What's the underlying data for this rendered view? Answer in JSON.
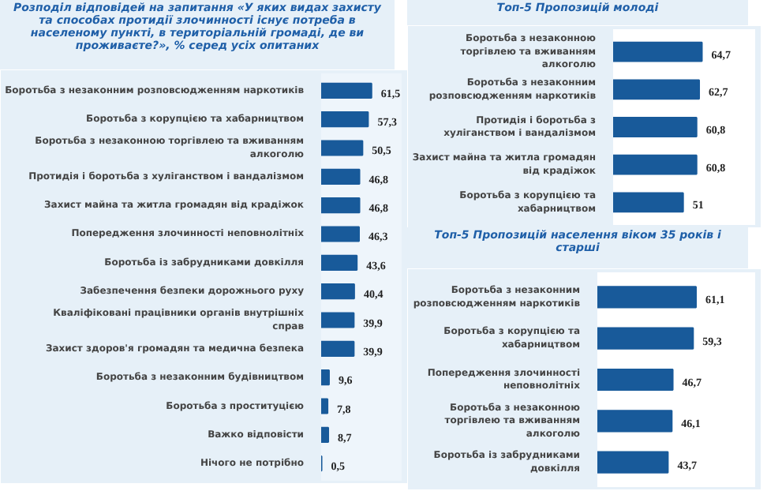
{
  "chart_data": [
    {
      "type": "bar",
      "orientation": "horizontal",
      "title": "Розподіл відповідей на запитання «У яких видах захисту та способах протидії злочинності існує потреба в населеному пункті, в територіальній громаді, де ви проживаєте?», % серед усіх опитаних",
      "categories": [
        "Боротьба з незаконним розповсюдженням наркотиків",
        "Боротьба з корупцією та хабарництвом",
        "Боротьба з незаконною торгівлею та вживанням алкоголю",
        "Протидія і боротьба з хуліганством і вандалізмом",
        "Захист майна та житла громадян від крадіжок",
        "Попередження злочинності неповнолітніх",
        "Боротьба із забрудниками довкілля",
        "Забезпечення безпеки дорожнього руху",
        "Кваліфіковані працівники органів внутрішніх справ",
        "Захист здоров'я громадян та медична безпека",
        "Боротьба з незаконним будівництвом",
        "Боротьба з проституцією",
        "Важко відповісти",
        "Нічого не потрібно"
      ],
      "values": [
        61.5,
        57.3,
        50.5,
        46.8,
        46.8,
        46.3,
        43.6,
        40.4,
        39.9,
        39.9,
        9.6,
        7.8,
        8.7,
        0.5
      ],
      "value_labels": [
        "61,5",
        "57,3",
        "50,5",
        "46,8",
        "46,8",
        "46,3",
        "43,6",
        "40,4",
        "39,9",
        "39,9",
        "9,6",
        "7,8",
        "8,7",
        "0,5"
      ],
      "color": "#185a9a"
    },
    {
      "type": "bar",
      "orientation": "horizontal",
      "title": "Топ-5 Пропозицій молоді",
      "categories": [
        "Боротьба з незаконною торгівлею та вживанням алкоголю",
        "Боротьба з незаконним розповсюдженням наркотиків",
        "Протидія і боротьба з хуліганством і вандалізмом",
        "Захист майна та житла громадян від крадіжок",
        "Боротьба з корупцією та хабарництвом"
      ],
      "values": [
        64.7,
        62.7,
        60.8,
        60.8,
        51
      ],
      "value_labels": [
        "64,7",
        "62,7",
        "60,8",
        "60,8",
        "51"
      ],
      "color": "#185a9a"
    },
    {
      "type": "bar",
      "orientation": "horizontal",
      "title": "Топ-5 Пропозицій населення віком 35 років і старші",
      "categories": [
        "Боротьба з незаконним розповсюдженням наркотиків",
        "Боротьба з корупцією та хабарництвом",
        "Попередження злочинності неповнолітніх",
        "Боротьба з незаконною торгівлею та вживанням алкоголю",
        "Боротьба із забрудниками довкілля"
      ],
      "values": [
        61.1,
        59.3,
        46.7,
        46.1,
        43.7
      ],
      "value_labels": [
        "61,1",
        "59,3",
        "46,7",
        "46,1",
        "43,7"
      ],
      "color": "#185a9a"
    }
  ]
}
